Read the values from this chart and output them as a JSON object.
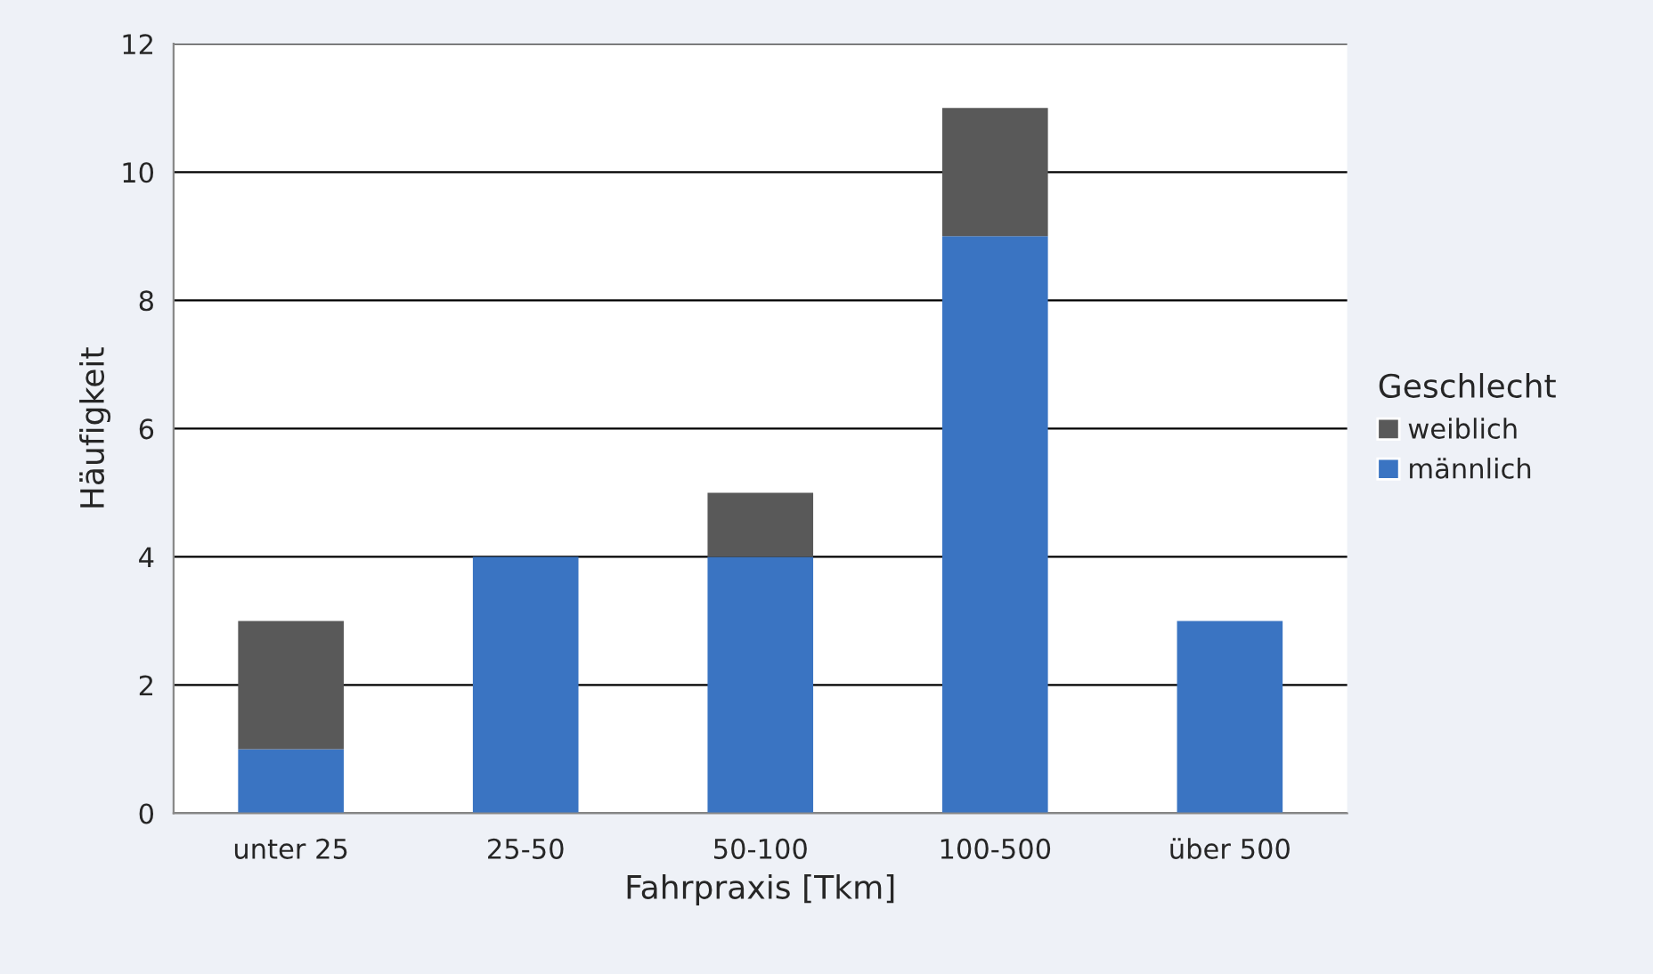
{
  "chart_data": {
    "type": "bar",
    "xlabel": "Fahrpraxis [Tkm]",
    "ylabel": "Häufigkeit",
    "legend_title": "Geschlecht",
    "categories": [
      "unter 25",
      "25-50",
      "50-100",
      "100-500",
      "über 500"
    ],
    "stacked": true,
    "series": [
      {
        "name": "männlich",
        "color": "#3a74c2",
        "values": [
          1,
          4,
          4,
          9,
          3
        ]
      },
      {
        "name": "weiblich",
        "color": "#595959",
        "values": [
          2,
          0,
          1,
          2,
          0
        ]
      }
    ],
    "ylim": [
      0,
      12
    ],
    "yticks": [
      0,
      2,
      4,
      6,
      8,
      10,
      12
    ],
    "grid": "y",
    "legend": "right"
  }
}
